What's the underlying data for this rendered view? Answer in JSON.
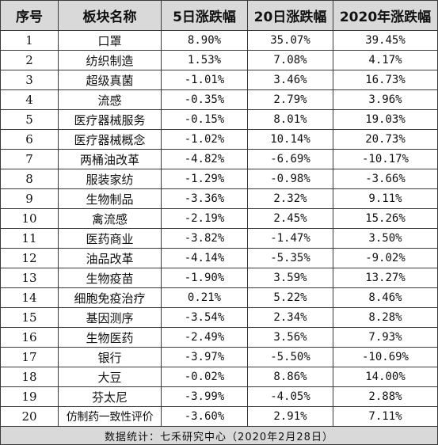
{
  "header": {
    "col_index": "序号",
    "col_sector": "板块名称",
    "col_5d": "5日涨跌幅",
    "col_20d": "20日涨跌幅",
    "col_2020": "2020年涨跌幅"
  },
  "rows": [
    {
      "index": "1",
      "sector": "口罩",
      "d5": "8.90%",
      "d20": "35.07%",
      "y2020": "39.45%"
    },
    {
      "index": "2",
      "sector": "纺织制造",
      "d5": "1.53%",
      "d20": "7.08%",
      "y2020": "4.17%"
    },
    {
      "index": "3",
      "sector": "超级真菌",
      "d5": "-1.01%",
      "d20": "3.46%",
      "y2020": "16.73%"
    },
    {
      "index": "4",
      "sector": "流感",
      "d5": "-0.35%",
      "d20": "2.79%",
      "y2020": "3.96%"
    },
    {
      "index": "5",
      "sector": "医疗器械服务",
      "d5": "-0.15%",
      "d20": "8.01%",
      "y2020": "19.03%"
    },
    {
      "index": "6",
      "sector": "医疗器械概念",
      "d5": "-1.02%",
      "d20": "10.14%",
      "y2020": "20.73%"
    },
    {
      "index": "7",
      "sector": "两桶油改革",
      "d5": "-4.82%",
      "d20": "-6.69%",
      "y2020": "-10.17%"
    },
    {
      "index": "8",
      "sector": "服装家纺",
      "d5": "-1.29%",
      "d20": "-0.98%",
      "y2020": "-3.66%"
    },
    {
      "index": "9",
      "sector": "生物制品",
      "d5": "-3.36%",
      "d20": "2.32%",
      "y2020": "9.11%"
    },
    {
      "index": "10",
      "sector": "禽流感",
      "d5": "-2.19%",
      "d20": "2.45%",
      "y2020": "15.26%"
    },
    {
      "index": "11",
      "sector": "医药商业",
      "d5": "-3.82%",
      "d20": "-1.47%",
      "y2020": "3.50%"
    },
    {
      "index": "12",
      "sector": "油品改革",
      "d5": "-4.14%",
      "d20": "-5.35%",
      "y2020": "-9.02%"
    },
    {
      "index": "13",
      "sector": "生物疫苗",
      "d5": "-1.90%",
      "d20": "3.59%",
      "y2020": "13.27%"
    },
    {
      "index": "14",
      "sector": "细胞免疫治疗",
      "d5": "0.21%",
      "d20": "5.22%",
      "y2020": "8.46%"
    },
    {
      "index": "15",
      "sector": "基因测序",
      "d5": "-3.54%",
      "d20": "2.34%",
      "y2020": "8.28%"
    },
    {
      "index": "16",
      "sector": "生物医药",
      "d5": "-2.49%",
      "d20": "3.56%",
      "y2020": "7.93%"
    },
    {
      "index": "17",
      "sector": "银行",
      "d5": "-3.97%",
      "d20": "-5.50%",
      "y2020": "-10.69%"
    },
    {
      "index": "18",
      "sector": "大豆",
      "d5": "-0.02%",
      "d20": "8.86%",
      "y2020": "14.00%"
    },
    {
      "index": "19",
      "sector": "芬太尼",
      "d5": "-3.99%",
      "d20": "-4.05%",
      "y2020": "2.88%"
    },
    {
      "index": "20",
      "sector": "仿制药一致性评价",
      "d5": "-3.60%",
      "d20": "2.91%",
      "y2020": "7.11%"
    }
  ],
  "footer": {
    "source": "数据统计：七禾研究中心（2020年2月28日）"
  }
}
